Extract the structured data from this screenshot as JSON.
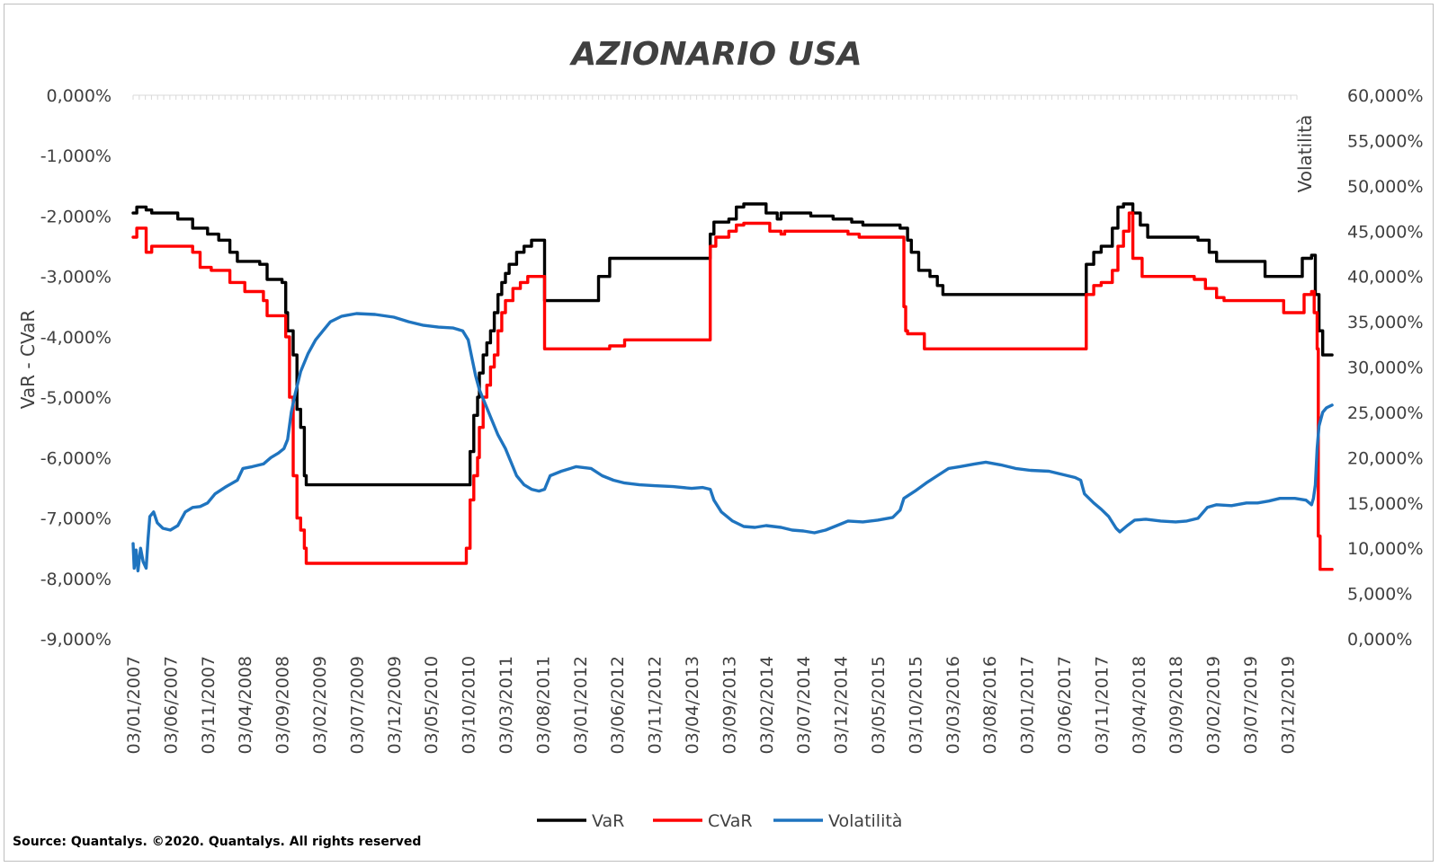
{
  "chart_data": {
    "type": "line",
    "title": "AZIONARIO USA",
    "ylabel": "VaR - CVaR",
    "y2label": "Volatilità",
    "ylim": [
      -9,
      0
    ],
    "y2lim": [
      0,
      60
    ],
    "yticks": [
      "0,000%",
      "-1,000%",
      "-2,000%",
      "-3,000%",
      "-4,000%",
      "-5,000%",
      "-6,000%",
      "-7,000%",
      "-8,000%",
      "-9,000%"
    ],
    "y2ticks": [
      "60,000%",
      "55,000%",
      "50,000%",
      "45,000%",
      "40,000%",
      "35,000%",
      "30,000%",
      "25,000%",
      "20,000%",
      "15,000%",
      "10,000%",
      "5,000%",
      "0,000%"
    ],
    "xticks": [
      "03/01/2007",
      "03/06/2007",
      "03/11/2007",
      "03/04/2008",
      "03/09/2008",
      "03/02/2009",
      "03/07/2009",
      "03/12/2009",
      "03/05/2010",
      "03/10/2010",
      "03/03/2011",
      "03/08/2011",
      "03/01/2012",
      "03/06/2012",
      "03/11/2012",
      "03/04/2013",
      "03/09/2013",
      "03/02/2014",
      "03/07/2014",
      "03/12/2014",
      "03/05/2015",
      "03/10/2015",
      "03/03/2016",
      "03/08/2016",
      "03/01/2017",
      "03/06/2017",
      "03/11/2017",
      "03/04/2018",
      "03/09/2018",
      "03/02/2019",
      "03/07/2019",
      "03/12/2019"
    ],
    "legend_position": "bottom",
    "grid": false,
    "series": [
      {
        "name": "VaR",
        "axis": "left",
        "color": "#000000",
        "step": true,
        "points": [
          [
            0,
            -1.95
          ],
          [
            0.1,
            -1.85
          ],
          [
            0.35,
            -1.9
          ],
          [
            0.5,
            -1.95
          ],
          [
            1.2,
            -2.05
          ],
          [
            1.6,
            -2.2
          ],
          [
            2.0,
            -2.3
          ],
          [
            2.3,
            -2.4
          ],
          [
            2.6,
            -2.6
          ],
          [
            2.8,
            -2.75
          ],
          [
            3.4,
            -2.8
          ],
          [
            3.6,
            -3.05
          ],
          [
            4.0,
            -3.1
          ],
          [
            4.1,
            -3.6
          ],
          [
            4.15,
            -3.9
          ],
          [
            4.3,
            -4.3
          ],
          [
            4.4,
            -5.2
          ],
          [
            4.5,
            -5.5
          ],
          [
            4.6,
            -6.3
          ],
          [
            4.65,
            -6.45
          ],
          [
            9.0,
            -6.45
          ],
          [
            9.05,
            -5.9
          ],
          [
            9.15,
            -5.3
          ],
          [
            9.25,
            -5.0
          ],
          [
            9.3,
            -4.6
          ],
          [
            9.4,
            -4.3
          ],
          [
            9.5,
            -4.1
          ],
          [
            9.6,
            -3.9
          ],
          [
            9.7,
            -3.6
          ],
          [
            9.8,
            -3.3
          ],
          [
            9.9,
            -3.1
          ],
          [
            10.0,
            -2.95
          ],
          [
            10.1,
            -2.8
          ],
          [
            10.3,
            -2.6
          ],
          [
            10.5,
            -2.5
          ],
          [
            10.7,
            -2.4
          ],
          [
            11.05,
            -3.4
          ],
          [
            12.2,
            -3.4
          ],
          [
            12.5,
            -3.0
          ],
          [
            12.8,
            -2.7
          ],
          [
            15.4,
            -2.7
          ],
          [
            15.5,
            -2.3
          ],
          [
            15.6,
            -2.1
          ],
          [
            16.0,
            -2.05
          ],
          [
            16.2,
            -1.85
          ],
          [
            16.4,
            -1.8
          ],
          [
            17.0,
            -1.95
          ],
          [
            17.3,
            -2.05
          ],
          [
            17.4,
            -1.95
          ],
          [
            18.2,
            -2.0
          ],
          [
            18.8,
            -2.05
          ],
          [
            19.3,
            -2.1
          ],
          [
            19.6,
            -2.15
          ],
          [
            20.6,
            -2.2
          ],
          [
            20.8,
            -2.4
          ],
          [
            20.9,
            -2.6
          ],
          [
            21.1,
            -2.9
          ],
          [
            21.4,
            -3.0
          ],
          [
            21.6,
            -3.15
          ],
          [
            21.75,
            -3.3
          ],
          [
            25.5,
            -3.3
          ],
          [
            25.6,
            -2.8
          ],
          [
            25.8,
            -2.6
          ],
          [
            26.0,
            -2.5
          ],
          [
            26.3,
            -2.2
          ],
          [
            26.45,
            -1.85
          ],
          [
            26.6,
            -1.8
          ],
          [
            26.85,
            -1.95
          ],
          [
            27.05,
            -2.15
          ],
          [
            27.25,
            -2.35
          ],
          [
            28.6,
            -2.4
          ],
          [
            28.9,
            -2.6
          ],
          [
            29.1,
            -2.75
          ],
          [
            30.2,
            -2.75
          ],
          [
            30.4,
            -3.0
          ],
          [
            31.2,
            -3.0
          ],
          [
            31.4,
            -2.7
          ],
          [
            31.65,
            -2.65
          ],
          [
            31.75,
            -3.3
          ],
          [
            31.85,
            -3.9
          ],
          [
            31.95,
            -4.3
          ],
          [
            32.2,
            -4.3
          ]
        ]
      },
      {
        "name": "CVaR",
        "axis": "left",
        "color": "#ff0000",
        "step": true,
        "points": [
          [
            0,
            -2.35
          ],
          [
            0.1,
            -2.2
          ],
          [
            0.35,
            -2.6
          ],
          [
            0.5,
            -2.5
          ],
          [
            1.6,
            -2.6
          ],
          [
            1.8,
            -2.85
          ],
          [
            2.1,
            -2.9
          ],
          [
            2.6,
            -3.1
          ],
          [
            3.0,
            -3.25
          ],
          [
            3.5,
            -3.4
          ],
          [
            3.6,
            -3.65
          ],
          [
            4.0,
            -3.65
          ],
          [
            4.1,
            -4.0
          ],
          [
            4.2,
            -5.0
          ],
          [
            4.3,
            -6.3
          ],
          [
            4.4,
            -7.0
          ],
          [
            4.5,
            -7.2
          ],
          [
            4.6,
            -7.5
          ],
          [
            4.65,
            -7.75
          ],
          [
            8.9,
            -7.75
          ],
          [
            8.95,
            -7.5
          ],
          [
            9.05,
            -6.7
          ],
          [
            9.15,
            -6.3
          ],
          [
            9.25,
            -6.0
          ],
          [
            9.3,
            -5.5
          ],
          [
            9.4,
            -5.0
          ],
          [
            9.5,
            -4.8
          ],
          [
            9.6,
            -4.5
          ],
          [
            9.7,
            -4.3
          ],
          [
            9.8,
            -3.9
          ],
          [
            9.9,
            -3.6
          ],
          [
            10.0,
            -3.4
          ],
          [
            10.2,
            -3.2
          ],
          [
            10.4,
            -3.1
          ],
          [
            10.6,
            -3.0
          ],
          [
            11.05,
            -4.2
          ],
          [
            12.8,
            -4.15
          ],
          [
            13.2,
            -4.05
          ],
          [
            15.4,
            -4.05
          ],
          [
            15.5,
            -2.5
          ],
          [
            15.65,
            -2.35
          ],
          [
            16.0,
            -2.25
          ],
          [
            16.2,
            -2.15
          ],
          [
            16.4,
            -2.12
          ],
          [
            17.1,
            -2.25
          ],
          [
            17.4,
            -2.3
          ],
          [
            17.5,
            -2.25
          ],
          [
            19.2,
            -2.3
          ],
          [
            19.5,
            -2.35
          ],
          [
            20.6,
            -2.35
          ],
          [
            20.7,
            -3.5
          ],
          [
            20.75,
            -3.9
          ],
          [
            20.8,
            -3.95
          ],
          [
            21.25,
            -4.2
          ],
          [
            25.5,
            -4.2
          ],
          [
            25.6,
            -3.3
          ],
          [
            25.8,
            -3.15
          ],
          [
            26.0,
            -3.1
          ],
          [
            26.3,
            -2.9
          ],
          [
            26.45,
            -2.5
          ],
          [
            26.6,
            -2.25
          ],
          [
            26.75,
            -1.95
          ],
          [
            26.85,
            -2.7
          ],
          [
            27.1,
            -3.0
          ],
          [
            28.5,
            -3.05
          ],
          [
            28.8,
            -3.2
          ],
          [
            29.1,
            -3.35
          ],
          [
            29.3,
            -3.4
          ],
          [
            30.6,
            -3.4
          ],
          [
            30.9,
            -3.6
          ],
          [
            31.3,
            -3.6
          ],
          [
            31.45,
            -3.3
          ],
          [
            31.65,
            -3.25
          ],
          [
            31.72,
            -3.6
          ],
          [
            31.8,
            -4.2
          ],
          [
            31.83,
            -7.3
          ],
          [
            31.88,
            -7.85
          ],
          [
            32.2,
            -7.85
          ]
        ]
      },
      {
        "name": "Volatilità",
        "axis": "right",
        "color": "#1f74bf",
        "step": false,
        "points": [
          [
            0,
            10.5
          ],
          [
            0.03,
            7.8
          ],
          [
            0.08,
            9.8
          ],
          [
            0.13,
            7.5
          ],
          [
            0.2,
            10.0
          ],
          [
            0.27,
            8.5
          ],
          [
            0.35,
            7.8
          ],
          [
            0.4,
            11.0
          ],
          [
            0.45,
            13.5
          ],
          [
            0.55,
            14.0
          ],
          [
            0.65,
            12.8
          ],
          [
            0.8,
            12.2
          ],
          [
            1.0,
            12.0
          ],
          [
            1.2,
            12.5
          ],
          [
            1.4,
            14.0
          ],
          [
            1.6,
            14.5
          ],
          [
            1.8,
            14.6
          ],
          [
            2.0,
            15.0
          ],
          [
            2.2,
            16.0
          ],
          [
            2.5,
            16.8
          ],
          [
            2.8,
            17.5
          ],
          [
            2.95,
            18.8
          ],
          [
            3.2,
            19.0
          ],
          [
            3.5,
            19.3
          ],
          [
            3.7,
            20.0
          ],
          [
            3.9,
            20.5
          ],
          [
            4.05,
            21.0
          ],
          [
            4.15,
            22.0
          ],
          [
            4.25,
            25.0
          ],
          [
            4.35,
            27.0
          ],
          [
            4.5,
            29.5
          ],
          [
            4.7,
            31.5
          ],
          [
            4.9,
            33.0
          ],
          [
            5.1,
            34.0
          ],
          [
            5.3,
            35.0
          ],
          [
            5.6,
            35.6
          ],
          [
            6.0,
            35.9
          ],
          [
            6.5,
            35.8
          ],
          [
            7.0,
            35.5
          ],
          [
            7.4,
            35.0
          ],
          [
            7.8,
            34.6
          ],
          [
            8.2,
            34.4
          ],
          [
            8.6,
            34.3
          ],
          [
            8.85,
            34.0
          ],
          [
            9.0,
            33.0
          ],
          [
            9.1,
            31.0
          ],
          [
            9.2,
            29.0
          ],
          [
            9.3,
            27.5
          ],
          [
            9.45,
            26.0
          ],
          [
            9.6,
            24.5
          ],
          [
            9.8,
            22.5
          ],
          [
            10.0,
            21.0
          ],
          [
            10.15,
            19.5
          ],
          [
            10.3,
            18.0
          ],
          [
            10.5,
            17.0
          ],
          [
            10.7,
            16.5
          ],
          [
            10.9,
            16.3
          ],
          [
            11.05,
            16.5
          ],
          [
            11.2,
            18.0
          ],
          [
            11.5,
            18.5
          ],
          [
            11.9,
            19.0
          ],
          [
            12.3,
            18.8
          ],
          [
            12.6,
            18.0
          ],
          [
            12.9,
            17.5
          ],
          [
            13.2,
            17.2
          ],
          [
            13.6,
            17.0
          ],
          [
            14.0,
            16.9
          ],
          [
            14.5,
            16.8
          ],
          [
            15.0,
            16.6
          ],
          [
            15.3,
            16.7
          ],
          [
            15.5,
            16.5
          ],
          [
            15.6,
            15.3
          ],
          [
            15.8,
            14.0
          ],
          [
            16.1,
            13.0
          ],
          [
            16.4,
            12.4
          ],
          [
            16.7,
            12.3
          ],
          [
            17.0,
            12.5
          ],
          [
            17.4,
            12.3
          ],
          [
            17.7,
            12.0
          ],
          [
            18.0,
            11.9
          ],
          [
            18.3,
            11.7
          ],
          [
            18.6,
            12.0
          ],
          [
            18.9,
            12.5
          ],
          [
            19.2,
            13.0
          ],
          [
            19.6,
            12.9
          ],
          [
            20.0,
            13.1
          ],
          [
            20.4,
            13.4
          ],
          [
            20.6,
            14.2
          ],
          [
            20.7,
            15.5
          ],
          [
            21.0,
            16.3
          ],
          [
            21.3,
            17.2
          ],
          [
            21.6,
            18.0
          ],
          [
            21.9,
            18.8
          ],
          [
            22.2,
            19.0
          ],
          [
            22.6,
            19.3
          ],
          [
            22.9,
            19.5
          ],
          [
            23.3,
            19.2
          ],
          [
            23.7,
            18.8
          ],
          [
            24.1,
            18.6
          ],
          [
            24.6,
            18.5
          ],
          [
            25.0,
            18.1
          ],
          [
            25.3,
            17.8
          ],
          [
            25.45,
            17.5
          ],
          [
            25.55,
            16.0
          ],
          [
            25.8,
            15.0
          ],
          [
            26.0,
            14.3
          ],
          [
            26.2,
            13.5
          ],
          [
            26.4,
            12.2
          ],
          [
            26.5,
            11.8
          ],
          [
            26.7,
            12.5
          ],
          [
            26.9,
            13.1
          ],
          [
            27.2,
            13.2
          ],
          [
            27.6,
            13.0
          ],
          [
            28.0,
            12.9
          ],
          [
            28.3,
            13.0
          ],
          [
            28.6,
            13.3
          ],
          [
            28.85,
            14.5
          ],
          [
            29.1,
            14.8
          ],
          [
            29.5,
            14.7
          ],
          [
            29.9,
            15.0
          ],
          [
            30.2,
            15.0
          ],
          [
            30.5,
            15.2
          ],
          [
            30.8,
            15.5
          ],
          [
            31.2,
            15.5
          ],
          [
            31.5,
            15.3
          ],
          [
            31.65,
            14.8
          ],
          [
            31.7,
            15.5
          ],
          [
            31.75,
            17.0
          ],
          [
            31.8,
            21.0
          ],
          [
            31.85,
            23.5
          ],
          [
            31.95,
            25.0
          ],
          [
            32.05,
            25.5
          ],
          [
            32.2,
            25.8
          ]
        ]
      }
    ]
  },
  "source": "Source: Quantalys. ©2020. Quantalys. All rights reserved"
}
